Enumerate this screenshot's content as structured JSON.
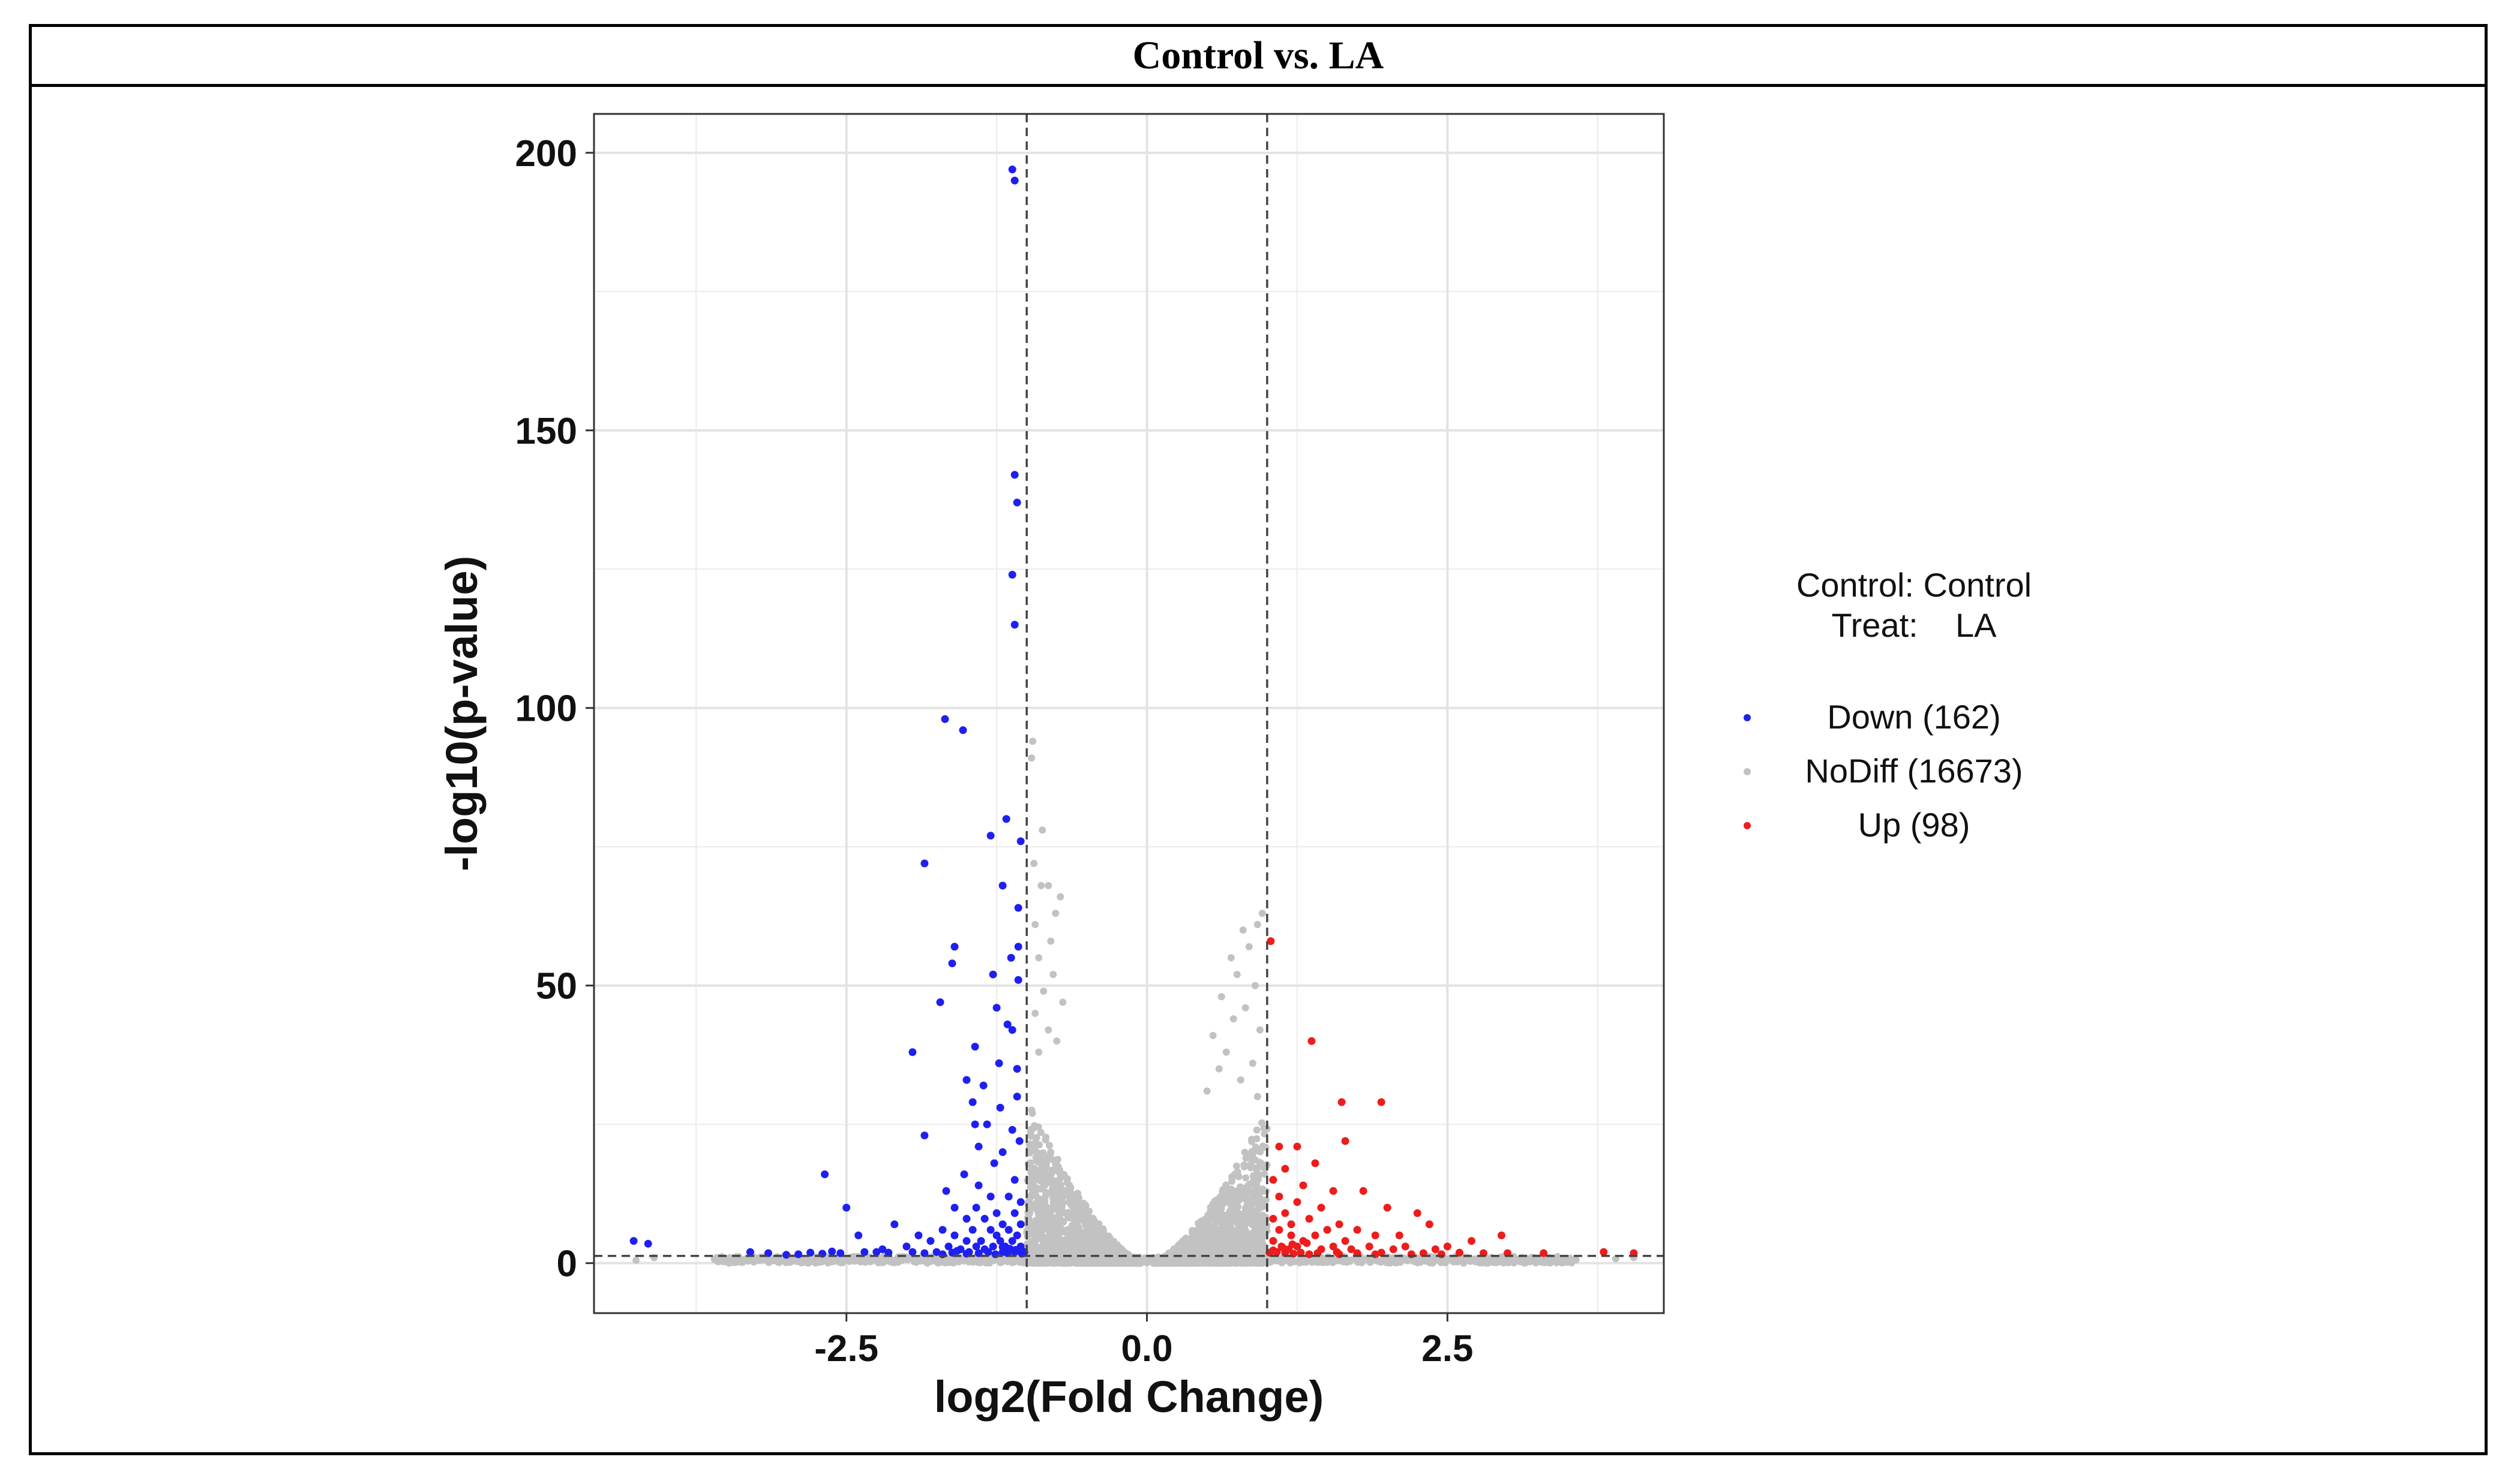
{
  "page": {
    "title": "Control vs. LA"
  },
  "colors": {
    "down": "#1f1ff2",
    "nodiff": "#c2c2c2",
    "up": "#ee1c1c",
    "grid": "#ebebeb",
    "threshold_line": "#444444"
  },
  "chart_data": {
    "type": "scatter",
    "title": "Control vs. LA",
    "xlabel": "log2(Fold Change)",
    "ylabel": "-log10(p-value)",
    "xlim": [
      -4.6,
      4.3
    ],
    "ylim": [
      -9,
      207
    ],
    "xticks": [
      -2.5,
      0.0,
      2.5
    ],
    "xtick_labels": [
      "-2.5",
      "0.0",
      "2.5"
    ],
    "yticks": [
      0,
      50,
      100,
      150,
      200
    ],
    "ytick_labels": [
      "0",
      "50",
      "100",
      "150",
      "200"
    ],
    "thresholds": {
      "log2fc": [
        -1,
        1
      ],
      "neg_log10_p": 1.3
    },
    "grid": true,
    "legend": {
      "position": "right",
      "header_lines": [
        "Control: Control",
        "Treat:    LA"
      ],
      "entries": [
        {
          "label": "Down (162)",
          "series": "Down"
        },
        {
          "label": "NoDiff (16673)",
          "series": "NoDiff"
        },
        {
          "label": "Up (98)",
          "series": "Up"
        }
      ]
    },
    "series": [
      {
        "name": "Down",
        "count": 162,
        "points": [
          [
            -1.12,
            197
          ],
          [
            -1.1,
            195
          ],
          [
            -1.1,
            142
          ],
          [
            -1.08,
            137
          ],
          [
            -1.12,
            124
          ],
          [
            -1.1,
            115
          ],
          [
            -1.68,
            98
          ],
          [
            -1.53,
            96
          ],
          [
            -1.17,
            80
          ],
          [
            -1.05,
            76
          ],
          [
            -1.3,
            77
          ],
          [
            -1.85,
            72
          ],
          [
            -1.2,
            68
          ],
          [
            -1.07,
            64
          ],
          [
            -1.6,
            57
          ],
          [
            -1.07,
            57
          ],
          [
            -1.13,
            55
          ],
          [
            -1.62,
            54
          ],
          [
            -1.28,
            52
          ],
          [
            -1.07,
            51
          ],
          [
            -1.72,
            47
          ],
          [
            -1.25,
            46
          ],
          [
            -1.16,
            43
          ],
          [
            -1.12,
            42
          ],
          [
            -1.43,
            39
          ],
          [
            -1.95,
            38
          ],
          [
            -1.23,
            36
          ],
          [
            -1.08,
            35
          ],
          [
            -1.5,
            33
          ],
          [
            -1.36,
            32
          ],
          [
            -1.08,
            30
          ],
          [
            -1.45,
            29
          ],
          [
            -1.22,
            28
          ],
          [
            -1.43,
            25
          ],
          [
            -1.33,
            25
          ],
          [
            -1.85,
            23
          ],
          [
            -1.12,
            24
          ],
          [
            -1.06,
            22
          ],
          [
            -1.4,
            21
          ],
          [
            -1.2,
            20
          ],
          [
            -1.27,
            18
          ],
          [
            -2.68,
            16
          ],
          [
            -1.52,
            16
          ],
          [
            -1.1,
            15
          ],
          [
            -1.4,
            14
          ],
          [
            -1.67,
            13
          ],
          [
            -1.3,
            12
          ],
          [
            -1.15,
            12
          ],
          [
            -1.05,
            11
          ],
          [
            -1.6,
            10
          ],
          [
            -1.42,
            10
          ],
          [
            -2.5,
            10
          ],
          [
            -1.25,
            9
          ],
          [
            -1.1,
            9
          ],
          [
            -1.5,
            8
          ],
          [
            -1.35,
            8
          ],
          [
            -1.2,
            7
          ],
          [
            -2.1,
            7
          ],
          [
            -1.05,
            7
          ],
          [
            -1.7,
            6
          ],
          [
            -1.45,
            6
          ],
          [
            -1.3,
            6
          ],
          [
            -1.15,
            6
          ],
          [
            -2.4,
            5
          ],
          [
            -1.9,
            5
          ],
          [
            -1.6,
            5
          ],
          [
            -1.25,
            5
          ],
          [
            -1.08,
            5
          ],
          [
            -1.8,
            4
          ],
          [
            -1.5,
            4
          ],
          [
            -1.38,
            4
          ],
          [
            -1.22,
            4
          ],
          [
            -4.27,
            4
          ],
          [
            -4.15,
            3.5
          ],
          [
            -1.12,
            4
          ],
          [
            -2.0,
            3
          ],
          [
            -1.65,
            3
          ],
          [
            -1.42,
            3
          ],
          [
            -1.28,
            3
          ],
          [
            -1.18,
            3
          ],
          [
            -1.05,
            3
          ],
          [
            -2.2,
            2.5
          ],
          [
            -1.55,
            2.5
          ],
          [
            -1.35,
            2.5
          ],
          [
            -3.3,
            2
          ],
          [
            -3.0,
            1.5
          ],
          [
            -2.9,
            1.6
          ],
          [
            -2.7,
            1.7
          ],
          [
            -2.55,
            1.8
          ],
          [
            -2.35,
            2
          ],
          [
            -2.25,
            2
          ],
          [
            -1.95,
            2
          ],
          [
            -1.75,
            2
          ],
          [
            -1.48,
            2
          ],
          [
            -1.32,
            2
          ],
          [
            -1.2,
            2
          ],
          [
            -1.1,
            2
          ],
          [
            -1.02,
            2
          ],
          [
            -3.15,
            1.8
          ],
          [
            -2.8,
            1.9
          ],
          [
            -2.62,
            2.1
          ],
          [
            -2.15,
            1.9
          ],
          [
            -1.85,
            1.8
          ],
          [
            -1.7,
            1.6
          ],
          [
            -1.62,
            1.9
          ],
          [
            -1.58,
            2.2
          ],
          [
            -1.5,
            1.7
          ],
          [
            -1.4,
            1.8
          ],
          [
            -1.26,
            1.6
          ],
          [
            -1.16,
            1.8
          ],
          [
            -1.04,
            1.7
          ],
          [
            -1.09,
            2.4
          ],
          [
            -1.14,
            2.6
          ],
          [
            -1.2,
            2.9
          ]
        ]
      },
      {
        "name": "Up",
        "count": 98,
        "points": [
          [
            1.03,
            58
          ],
          [
            1.37,
            40
          ],
          [
            1.62,
            29
          ],
          [
            1.95,
            29
          ],
          [
            1.65,
            22
          ],
          [
            1.1,
            21
          ],
          [
            1.25,
            21
          ],
          [
            1.4,
            18
          ],
          [
            1.15,
            17
          ],
          [
            1.05,
            15
          ],
          [
            1.3,
            14
          ],
          [
            1.55,
            13
          ],
          [
            1.8,
            13
          ],
          [
            1.1,
            12
          ],
          [
            1.25,
            11
          ],
          [
            2.0,
            10
          ],
          [
            1.45,
            10
          ],
          [
            1.15,
            9
          ],
          [
            2.25,
            9
          ],
          [
            1.35,
            8
          ],
          [
            1.05,
            8
          ],
          [
            2.35,
            7
          ],
          [
            1.6,
            7
          ],
          [
            1.2,
            7
          ],
          [
            1.75,
            6
          ],
          [
            1.5,
            6
          ],
          [
            1.1,
            6
          ],
          [
            2.1,
            5
          ],
          [
            1.9,
            5
          ],
          [
            1.4,
            5
          ],
          [
            1.2,
            5
          ],
          [
            2.95,
            5
          ],
          [
            2.7,
            4
          ],
          [
            2.5,
            3
          ],
          [
            1.65,
            4
          ],
          [
            1.3,
            4
          ],
          [
            1.05,
            4
          ],
          [
            2.15,
            3
          ],
          [
            1.85,
            3
          ],
          [
            1.55,
            3
          ],
          [
            1.25,
            3
          ],
          [
            1.12,
            3
          ],
          [
            2.4,
            2.5
          ],
          [
            2.05,
            2.5
          ],
          [
            1.7,
            2.5
          ],
          [
            1.45,
            2.5
          ],
          [
            1.18,
            2.5
          ],
          [
            3.8,
            2
          ],
          [
            4.05,
            1.8
          ],
          [
            3.3,
            1.8
          ],
          [
            3.0,
            1.8
          ],
          [
            2.8,
            1.8
          ],
          [
            2.6,
            1.9
          ],
          [
            2.3,
            1.8
          ],
          [
            1.95,
            1.9
          ],
          [
            1.75,
            1.8
          ],
          [
            1.58,
            2
          ],
          [
            1.42,
            1.8
          ],
          [
            1.28,
            1.9
          ],
          [
            1.15,
            1.8
          ],
          [
            1.08,
            2
          ],
          [
            1.02,
            1.9
          ],
          [
            1.35,
            1.6
          ],
          [
            1.22,
            1.7
          ],
          [
            1.6,
            1.6
          ],
          [
            1.9,
            1.6
          ],
          [
            2.2,
            1.6
          ],
          [
            2.45,
            1.6
          ],
          [
            1.05,
            2.3
          ],
          [
            1.13,
            2.8
          ],
          [
            1.21,
            3.4
          ],
          [
            1.33,
            3.6
          ]
        ]
      }
    ]
  }
}
